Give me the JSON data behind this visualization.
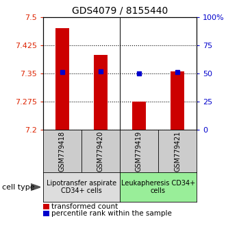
{
  "title": "GDS4079 / 8155440",
  "samples": [
    "GSM779418",
    "GSM779420",
    "GSM779419",
    "GSM779421"
  ],
  "transformed_counts": [
    7.47,
    7.4,
    7.275,
    7.355
  ],
  "percentile_ranks": [
    51,
    52,
    50,
    51
  ],
  "ylim_left": [
    7.2,
    7.5
  ],
  "ylim_right": [
    0,
    100
  ],
  "yticks_left": [
    7.2,
    7.275,
    7.35,
    7.425,
    7.5
  ],
  "ytick_labels_left": [
    "7.2",
    "7.275",
    "7.35",
    "7.425",
    "7.5"
  ],
  "yticks_right": [
    0,
    25,
    50,
    75,
    100
  ],
  "ytick_labels_right": [
    "0",
    "25",
    "50",
    "75",
    "100%"
  ],
  "bar_color": "#cc0000",
  "dot_color": "#0000cc",
  "base_value": 7.2,
  "group_labels": [
    "Lipotransfer aspirate\nCD34+ cells",
    "Leukapheresis CD34+\ncells"
  ],
  "group_colors": [
    "#dddddd",
    "#99ee99"
  ],
  "sample_box_color": "#cccccc",
  "cell_type_label": "cell type",
  "legend_bar_label": "transformed count",
  "legend_dot_label": "percentile rank within the sample",
  "left_tick_color": "#dd2200",
  "right_tick_color": "#0000cc",
  "title_fontsize": 10,
  "tick_fontsize": 8,
  "sample_fontsize": 7,
  "group_fontsize": 7
}
